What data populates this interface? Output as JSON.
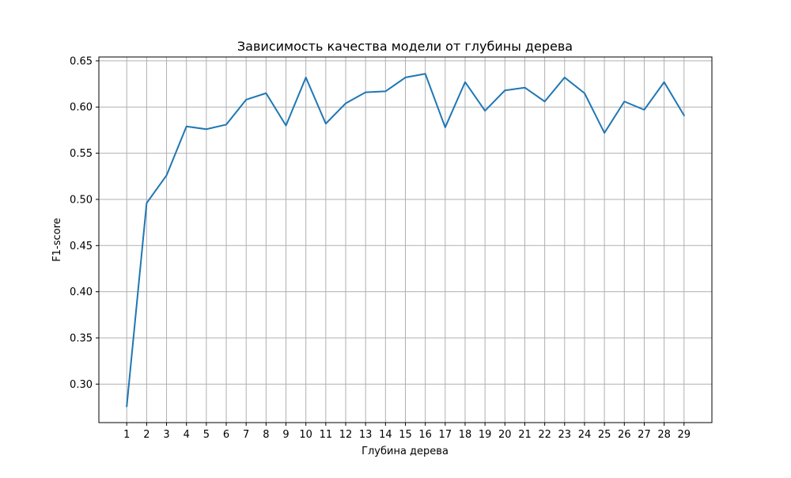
{
  "chart_data": {
    "type": "line",
    "title": "Зависимость качества модели от глубины дерева",
    "xlabel": "Глубина дерева",
    "ylabel": "F1-score",
    "x": [
      1,
      2,
      3,
      4,
      5,
      6,
      7,
      8,
      9,
      10,
      11,
      12,
      13,
      14,
      15,
      16,
      17,
      18,
      19,
      20,
      21,
      22,
      23,
      24,
      25,
      26,
      27,
      28,
      29
    ],
    "series": [
      {
        "values": [
          0.276,
          0.496,
          0.526,
          0.579,
          0.576,
          0.581,
          0.608,
          0.615,
          0.58,
          0.632,
          0.582,
          0.604,
          0.616,
          0.617,
          0.632,
          0.636,
          0.578,
          0.627,
          0.596,
          0.618,
          0.621,
          0.606,
          0.632,
          0.615,
          0.572,
          0.606,
          0.597,
          0.627,
          0.591
        ],
        "color": "#1f77b4"
      }
    ],
    "xticks": [
      "1",
      "2",
      "3",
      "4",
      "5",
      "6",
      "7",
      "8",
      "9",
      "10",
      "11",
      "12",
      "13",
      "14",
      "15",
      "16",
      "17",
      "18",
      "19",
      "20",
      "21",
      "22",
      "23",
      "24",
      "25",
      "26",
      "27",
      "28",
      "29"
    ],
    "yticks": [
      0.3,
      0.35,
      0.4,
      0.45,
      0.5,
      0.55,
      0.6,
      0.65
    ],
    "ytick_labels": [
      "0.30",
      "0.35",
      "0.40",
      "0.45",
      "0.50",
      "0.55",
      "0.60",
      "0.65"
    ],
    "xlim": [
      -0.4,
      30.4
    ],
    "ylim": [
      0.2583,
      0.6542
    ],
    "grid": true
  }
}
